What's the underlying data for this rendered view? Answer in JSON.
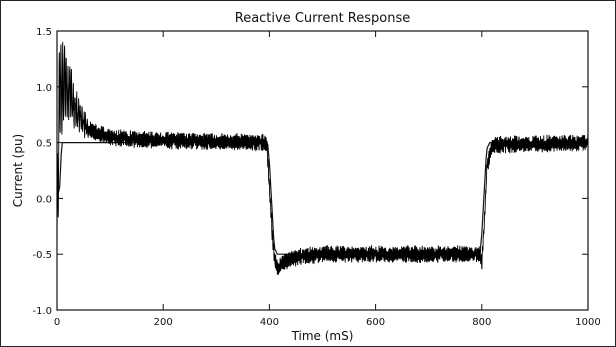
{
  "chart_data": {
    "type": "line",
    "title": "Reactive Current Response",
    "xlabel": "Time (mS)",
    "ylabel": "Current (pu)",
    "xlim": [
      0,
      1000
    ],
    "ylim": [
      -1.0,
      1.5
    ],
    "xticks": [
      0,
      200,
      400,
      600,
      800,
      1000
    ],
    "xtick_labels": [
      "0",
      "200",
      "400",
      "600",
      "800",
      "1000"
    ],
    "yticks": [
      -1.0,
      -0.5,
      0.0,
      0.5,
      1.0,
      1.5
    ],
    "ytick_labels": [
      "-1.0",
      "-0.5",
      "0.0",
      "0.5",
      "1.0",
      "1.5"
    ],
    "grid": false,
    "legend": "none",
    "series": [
      {
        "role": "reference",
        "x": [
          0,
          5,
          8,
          10,
          12,
          395,
          397,
          398,
          400,
          405,
          408,
          410,
          415,
          795,
          797,
          798,
          800,
          805,
          808,
          810,
          815,
          1000
        ],
        "y": [
          0,
          0.1,
          0.4,
          0.5,
          0.5,
          0.5,
          0.48,
          0.42,
          0.32,
          -0.1,
          -0.35,
          -0.45,
          -0.5,
          -0.5,
          -0.48,
          -0.42,
          -0.32,
          0.1,
          0.35,
          0.45,
          0.5,
          0.5
        ]
      },
      {
        "role": "measured",
        "x": [
          0,
          5,
          10,
          15,
          20,
          25,
          30,
          35,
          40,
          50,
          60,
          80,
          100,
          150,
          200,
          300,
          395,
          400,
          405,
          410,
          415,
          420,
          430,
          440,
          460,
          500,
          600,
          700,
          795,
          800,
          805,
          810,
          820,
          1000
        ],
        "y": [
          -0.38,
          1.05,
          0.95,
          1.1,
          0.9,
          1.0,
          0.85,
          0.8,
          0.75,
          0.68,
          0.62,
          0.58,
          0.55,
          0.53,
          0.52,
          0.51,
          0.5,
          0.1,
          -0.3,
          -0.55,
          -0.62,
          -0.6,
          -0.56,
          -0.54,
          -0.52,
          -0.5,
          -0.5,
          -0.5,
          -0.5,
          -0.58,
          -0.2,
          0.3,
          0.48,
          0.5
        ]
      }
    ]
  }
}
